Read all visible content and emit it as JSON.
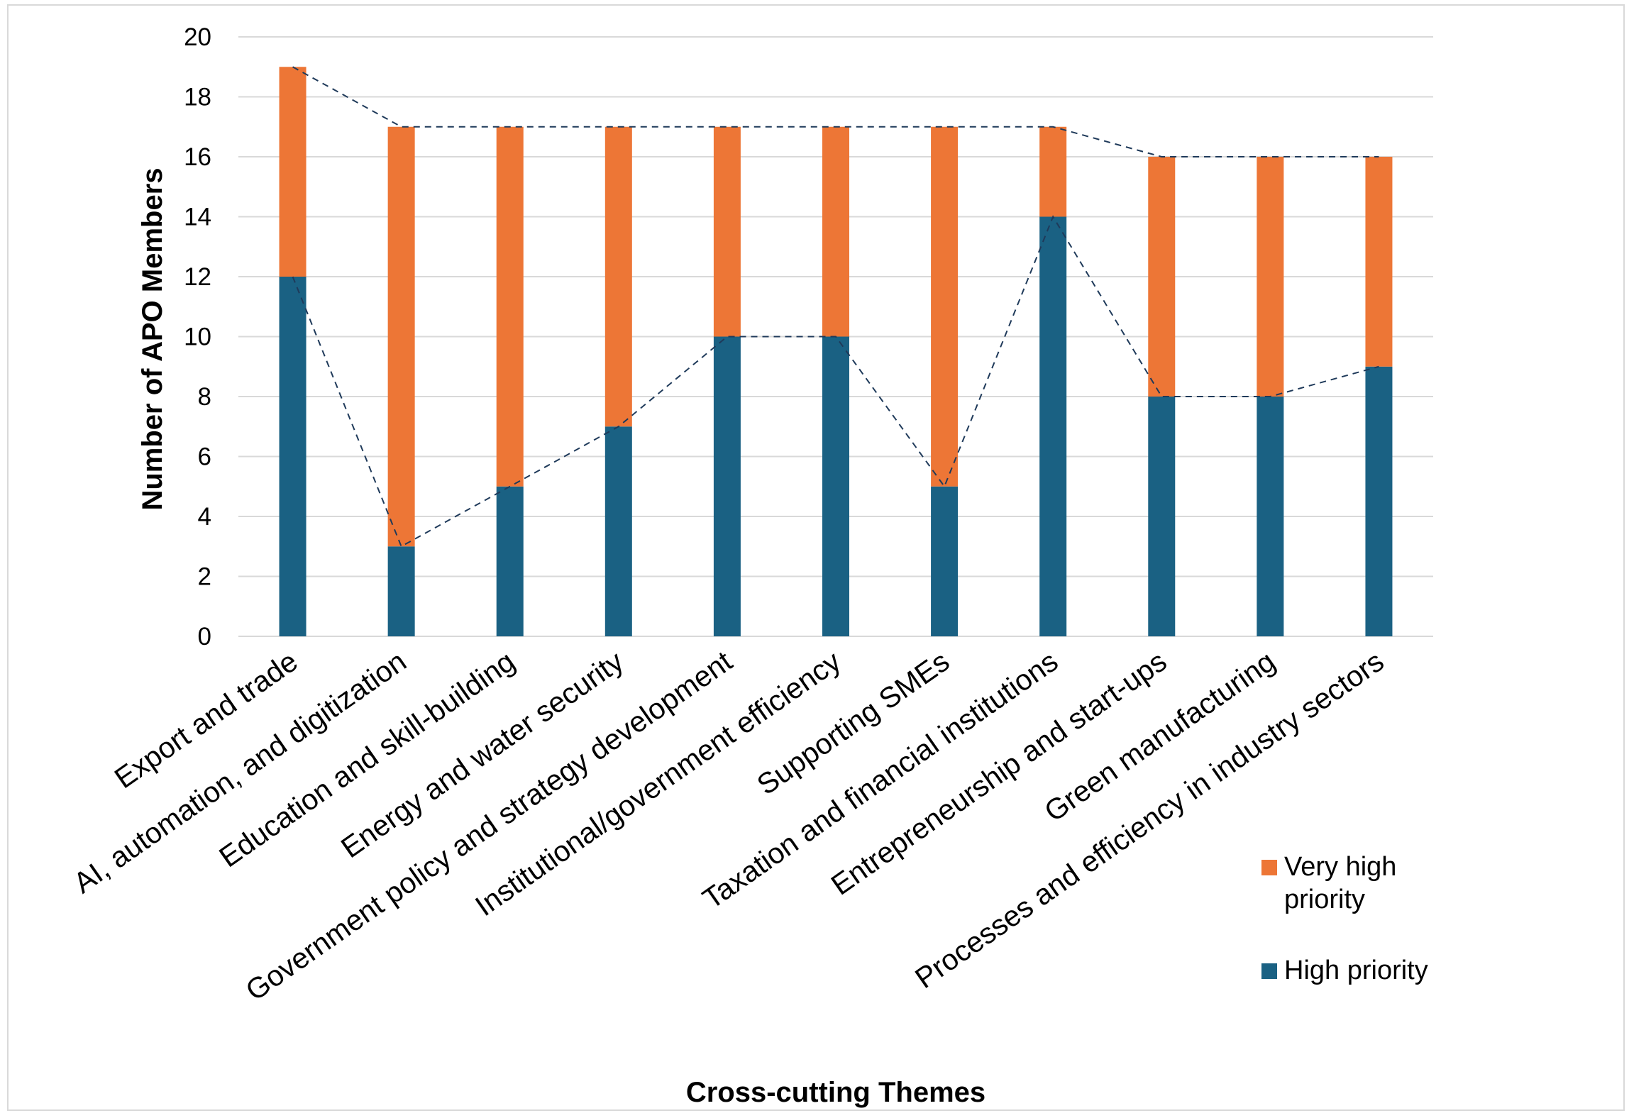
{
  "chart_data": {
    "type": "bar",
    "stacked": true,
    "categories": [
      "Export and trade",
      "AI, automation, and digitization",
      "Education and skill-building",
      "Energy and water security",
      "Government policy and strategy development",
      "Institutional/government efficiency",
      "Supporting SMEs",
      "Taxation and financial institutions",
      "Entrepreneurship and start-ups",
      "Green manufacturing",
      "Processes and efficiency in industry sectors"
    ],
    "series": [
      {
        "name": "High priority",
        "color": "#1a6183",
        "values": [
          12,
          3,
          5,
          7,
          10,
          10,
          5,
          14,
          8,
          8,
          9
        ]
      },
      {
        "name": "Very high priority",
        "color": "#ed7636",
        "values": [
          7,
          14,
          12,
          10,
          7,
          7,
          12,
          3,
          8,
          8,
          7
        ]
      }
    ],
    "xlabel": "Cross-cutting Themes",
    "ylabel": "Number of APO Members",
    "ylim": [
      0,
      20
    ],
    "yticks": [
      0,
      2,
      4,
      6,
      8,
      10,
      12,
      14,
      16,
      18,
      20
    ],
    "grid": true,
    "legend_position": "bottom-right",
    "trend_lines": "dashed",
    "trend_line_color": "#1f3a5a"
  }
}
